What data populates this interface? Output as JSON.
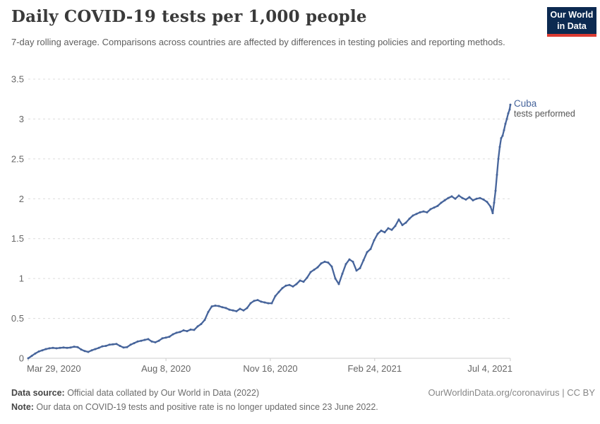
{
  "header": {
    "title": "Daily COVID-19 tests per 1,000 people",
    "subtitle": "7-day rolling average. Comparisons across countries are affected by differences in testing policies and reporting methods.",
    "logo": {
      "line1": "Our World",
      "line2": "in Data",
      "bg_color": "#0c2a51",
      "stripe_color": "#dc3b32"
    }
  },
  "footer": {
    "source_label": "Data source:",
    "source_text": " Official data collated by Our World in Data (2022)",
    "note_label": "Note:",
    "note_text": " Our data on COVID-19 tests and positive rate is no longer updated since 23 June 2022.",
    "attribution": "OurWorldinData.org/coronavirus | CC BY"
  },
  "chart_data": {
    "type": "line",
    "title": "Daily COVID-19 tests per 1,000 people",
    "xlabel": "",
    "ylabel": "",
    "ylim": [
      0,
      3.5
    ],
    "grid": "dashed-horizontal",
    "grid_color": "#dcdcdc",
    "axis_color": "#cccccc",
    "tick_label_color": "#666666",
    "x_range_dates": [
      "Mar 29, 2020",
      "Jul 4, 2021"
    ],
    "x_ticks": [
      {
        "t": 0.0,
        "label": "Mar 29, 2020",
        "anchor": "start"
      },
      {
        "t": 0.2857,
        "label": "Aug 8, 2020",
        "anchor": "middle"
      },
      {
        "t": 0.5022,
        "label": "Nov 16, 2020",
        "anchor": "middle"
      },
      {
        "t": 0.7186,
        "label": "Feb 24, 2021",
        "anchor": "middle"
      },
      {
        "t": 1.0,
        "label": "Jul 4, 2021",
        "anchor": "end"
      }
    ],
    "y_ticks": [
      {
        "v": 0,
        "label": "0"
      },
      {
        "v": 0.5,
        "label": "0.5"
      },
      {
        "v": 1,
        "label": "1"
      },
      {
        "v": 1.5,
        "label": "1.5"
      },
      {
        "v": 2,
        "label": "2"
      },
      {
        "v": 2.5,
        "label": "2.5"
      },
      {
        "v": 3,
        "label": "3"
      },
      {
        "v": 3.5,
        "label": "3.5"
      }
    ],
    "series": [
      {
        "name": "Cuba",
        "metric_label": "tests performed",
        "color": "#46649b",
        "points": [
          [
            0,
            0
          ],
          [
            0.0073,
            0.03
          ],
          [
            0.0146,
            0.06
          ],
          [
            0.022,
            0.085
          ],
          [
            0.0293,
            0.1
          ],
          [
            0.0366,
            0.115
          ],
          [
            0.0439,
            0.125
          ],
          [
            0.0512,
            0.13
          ],
          [
            0.0586,
            0.125
          ],
          [
            0.0659,
            0.13
          ],
          [
            0.0732,
            0.135
          ],
          [
            0.0805,
            0.13
          ],
          [
            0.0878,
            0.135
          ],
          [
            0.0952,
            0.145
          ],
          [
            0.1025,
            0.14
          ],
          [
            0.1098,
            0.11
          ],
          [
            0.1171,
            0.09
          ],
          [
            0.1245,
            0.08
          ],
          [
            0.1318,
            0.1
          ],
          [
            0.1391,
            0.115
          ],
          [
            0.1464,
            0.13
          ],
          [
            0.1537,
            0.15
          ],
          [
            0.1611,
            0.155
          ],
          [
            0.1684,
            0.17
          ],
          [
            0.1757,
            0.175
          ],
          [
            0.183,
            0.18
          ],
          [
            0.1903,
            0.155
          ],
          [
            0.1977,
            0.135
          ],
          [
            0.205,
            0.14
          ],
          [
            0.2123,
            0.17
          ],
          [
            0.2196,
            0.19
          ],
          [
            0.2269,
            0.21
          ],
          [
            0.2343,
            0.22
          ],
          [
            0.2416,
            0.23
          ],
          [
            0.2489,
            0.24
          ],
          [
            0.2562,
            0.21
          ],
          [
            0.2635,
            0.2
          ],
          [
            0.2709,
            0.22
          ],
          [
            0.2782,
            0.25
          ],
          [
            0.2855,
            0.26
          ],
          [
            0.2928,
            0.27
          ],
          [
            0.3001,
            0.3
          ],
          [
            0.3075,
            0.32
          ],
          [
            0.3148,
            0.33
          ],
          [
            0.3221,
            0.35
          ],
          [
            0.3294,
            0.34
          ],
          [
            0.3367,
            0.36
          ],
          [
            0.3441,
            0.355
          ],
          [
            0.3514,
            0.4
          ],
          [
            0.3587,
            0.43
          ],
          [
            0.366,
            0.48
          ],
          [
            0.3734,
            0.58
          ],
          [
            0.3807,
            0.65
          ],
          [
            0.388,
            0.66
          ],
          [
            0.3953,
            0.655
          ],
          [
            0.4026,
            0.64
          ],
          [
            0.41,
            0.63
          ],
          [
            0.4173,
            0.61
          ],
          [
            0.4246,
            0.6
          ],
          [
            0.4319,
            0.59
          ],
          [
            0.4392,
            0.62
          ],
          [
            0.4466,
            0.6
          ],
          [
            0.4539,
            0.63
          ],
          [
            0.4612,
            0.69
          ],
          [
            0.4685,
            0.72
          ],
          [
            0.4758,
            0.73
          ],
          [
            0.4832,
            0.71
          ],
          [
            0.4905,
            0.7
          ],
          [
            0.4978,
            0.69
          ],
          [
            0.5051,
            0.69
          ],
          [
            0.5124,
            0.78
          ],
          [
            0.5198,
            0.83
          ],
          [
            0.5271,
            0.88
          ],
          [
            0.5344,
            0.91
          ],
          [
            0.5417,
            0.92
          ],
          [
            0.5491,
            0.9
          ],
          [
            0.5564,
            0.93
          ],
          [
            0.5637,
            0.975
          ],
          [
            0.571,
            0.96
          ],
          [
            0.5783,
            1.01
          ],
          [
            0.5857,
            1.08
          ],
          [
            0.593,
            1.11
          ],
          [
            0.6003,
            1.14
          ],
          [
            0.6076,
            1.19
          ],
          [
            0.6149,
            1.21
          ],
          [
            0.6223,
            1.2
          ],
          [
            0.6296,
            1.15
          ],
          [
            0.6369,
            1.0
          ],
          [
            0.6442,
            0.93
          ],
          [
            0.6515,
            1.06
          ],
          [
            0.6589,
            1.18
          ],
          [
            0.6662,
            1.24
          ],
          [
            0.6735,
            1.21
          ],
          [
            0.6808,
            1.1
          ],
          [
            0.6881,
            1.13
          ],
          [
            0.6955,
            1.23
          ],
          [
            0.7028,
            1.33
          ],
          [
            0.7101,
            1.37
          ],
          [
            0.7174,
            1.48
          ],
          [
            0.7247,
            1.56
          ],
          [
            0.7321,
            1.6
          ],
          [
            0.7394,
            1.58
          ],
          [
            0.7467,
            1.63
          ],
          [
            0.754,
            1.61
          ],
          [
            0.7613,
            1.66
          ],
          [
            0.7687,
            1.74
          ],
          [
            0.776,
            1.67
          ],
          [
            0.7833,
            1.7
          ],
          [
            0.7906,
            1.75
          ],
          [
            0.7979,
            1.79
          ],
          [
            0.8053,
            1.81
          ],
          [
            0.8126,
            1.83
          ],
          [
            0.8199,
            1.84
          ],
          [
            0.8272,
            1.83
          ],
          [
            0.8345,
            1.87
          ],
          [
            0.8419,
            1.89
          ],
          [
            0.8492,
            1.91
          ],
          [
            0.8565,
            1.95
          ],
          [
            0.8638,
            1.98
          ],
          [
            0.8712,
            2.01
          ],
          [
            0.8785,
            2.03
          ],
          [
            0.8858,
            2.0
          ],
          [
            0.8931,
            2.04
          ],
          [
            0.9004,
            2.01
          ],
          [
            0.9078,
            1.99
          ],
          [
            0.9151,
            2.02
          ],
          [
            0.9224,
            1.98
          ],
          [
            0.9297,
            2.0
          ],
          [
            0.937,
            2.01
          ],
          [
            0.9444,
            1.99
          ],
          [
            0.9517,
            1.96
          ],
          [
            0.959,
            1.9
          ],
          [
            0.9634,
            1.82
          ],
          [
            0.9663,
            1.95
          ],
          [
            0.9693,
            2.1
          ],
          [
            0.9722,
            2.3
          ],
          [
            0.9751,
            2.5
          ],
          [
            0.978,
            2.65
          ],
          [
            0.981,
            2.76
          ],
          [
            0.9839,
            2.79
          ],
          [
            0.9868,
            2.86
          ],
          [
            0.9898,
            2.94
          ],
          [
            0.9927,
            3.0
          ],
          [
            0.9956,
            3.07
          ],
          [
            0.9985,
            3.12
          ],
          [
            1,
            3.18
          ]
        ]
      }
    ]
  }
}
